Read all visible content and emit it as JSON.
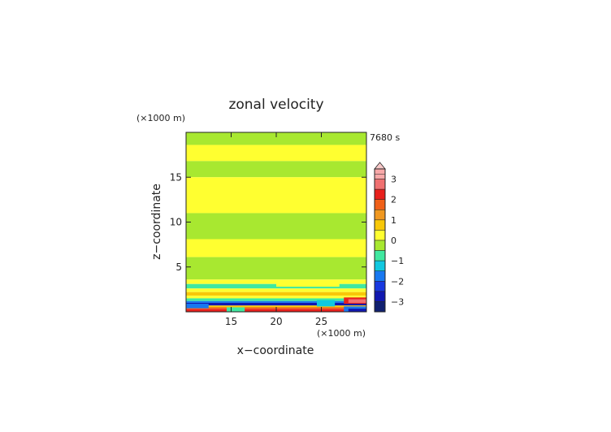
{
  "chart_data": {
    "type": "heatmap",
    "title": "zonal velocity",
    "xlabel": "x−coordinate",
    "ylabel": "z−coordinate",
    "x_unit": "(×1000 m)",
    "y_unit": "(×1000 m)",
    "time_label": "7680 s",
    "xlim": [
      10,
      30
    ],
    "ylim": [
      0,
      20
    ],
    "x_ticks": [
      15,
      20,
      25
    ],
    "y_ticks": [
      5,
      10,
      15
    ],
    "colorbar": {
      "tick_values": [
        3,
        2,
        1,
        0,
        -1,
        -2,
        -3
      ],
      "tick_labels": [
        "3",
        "2",
        "1",
        "0",
        "−1",
        "−2",
        "−3"
      ],
      "levels": [
        {
          "from": 3.25,
          "to": 3.5,
          "color": "#f8a8a8"
        },
        {
          "from": 3.0,
          "to": 3.25,
          "color": "#f8a8a8"
        },
        {
          "from": 2.5,
          "to": 3.0,
          "color": "#f07070"
        },
        {
          "from": 2.0,
          "to": 2.5,
          "color": "#e8201c"
        },
        {
          "from": 1.5,
          "to": 2.0,
          "color": "#f06018"
        },
        {
          "from": 1.0,
          "to": 1.5,
          "color": "#f09820"
        },
        {
          "from": 0.5,
          "to": 1.0,
          "color": "#f8c808"
        },
        {
          "from": 0.0,
          "to": 0.5,
          "color": "#ffff30"
        },
        {
          "from": -0.5,
          "to": 0.0,
          "color": "#a8e830"
        },
        {
          "from": -1.0,
          "to": -0.5,
          "color": "#40e8a0"
        },
        {
          "from": -1.5,
          "to": -1.0,
          "color": "#10c8e0"
        },
        {
          "from": -2.0,
          "to": -1.5,
          "color": "#1878f0"
        },
        {
          "from": -2.5,
          "to": -2.0,
          "color": "#1838e0"
        },
        {
          "from": -3.0,
          "to": -2.5,
          "color": "#1018b0"
        },
        {
          "from": -3.5,
          "to": -3.0,
          "color": "#102070"
        }
      ]
    },
    "bands": [
      {
        "z0": 18.6,
        "z1": 20.0,
        "value": -0.25
      },
      {
        "z0": 16.8,
        "z1": 18.6,
        "value": 0.25
      },
      {
        "z0": 15.0,
        "z1": 16.8,
        "value": -0.25
      },
      {
        "z0": 11.0,
        "z1": 15.0,
        "value": 0.25
      },
      {
        "z0": 8.1,
        "z1": 11.0,
        "value": -0.25
      },
      {
        "z0": 6.1,
        "z1": 8.1,
        "value": 0.25
      },
      {
        "z0": 3.6,
        "z1": 6.1,
        "value": -0.25
      },
      {
        "z0": 3.1,
        "z1": 3.6,
        "value": 0.25
      },
      {
        "z0": 2.6,
        "z1": 3.1,
        "value": -0.75
      },
      {
        "z0": 2.2,
        "z1": 2.6,
        "value": 0.25
      },
      {
        "z0": 1.8,
        "z1": 2.2,
        "value": 0.75
      },
      {
        "z0": 1.5,
        "z1": 1.8,
        "value": 0.25
      },
      {
        "z0": 1.2,
        "z1": 1.5,
        "value": -0.75
      },
      {
        "z0": 1.0,
        "z1": 1.2,
        "value": -1.75
      },
      {
        "z0": 0.7,
        "z1": 1.0,
        "value": -2.75
      },
      {
        "z0": 0.5,
        "z1": 0.7,
        "value": 0.75
      },
      {
        "z0": 0.3,
        "z1": 0.5,
        "value": 1.75
      },
      {
        "z0": 0.0,
        "z1": 0.3,
        "value": 2.25
      }
    ],
    "patches": [
      {
        "x0": 27.5,
        "x1": 30.0,
        "z0": 0.9,
        "z1": 1.6,
        "value": 2.25
      },
      {
        "x0": 28.0,
        "x1": 30.0,
        "z0": 1.0,
        "z1": 1.4,
        "value": 2.75
      },
      {
        "x0": 27.5,
        "x1": 30.0,
        "z0": 0.0,
        "z1": 0.6,
        "value": -1.75
      },
      {
        "x0": 28.0,
        "x1": 30.0,
        "z0": 0.0,
        "z1": 0.35,
        "value": -2.75
      },
      {
        "x0": 24.5,
        "x1": 26.5,
        "z0": 0.6,
        "z1": 1.3,
        "value": -1.25
      },
      {
        "x0": 14.5,
        "x1": 16.5,
        "z0": 0.0,
        "z1": 0.5,
        "value": -0.75
      },
      {
        "x0": 20.0,
        "x1": 27.0,
        "z0": 2.8,
        "z1": 3.2,
        "value": 0.25
      },
      {
        "x0": 10.0,
        "x1": 12.5,
        "z0": 0.4,
        "z1": 0.9,
        "value": -1.75
      }
    ]
  }
}
